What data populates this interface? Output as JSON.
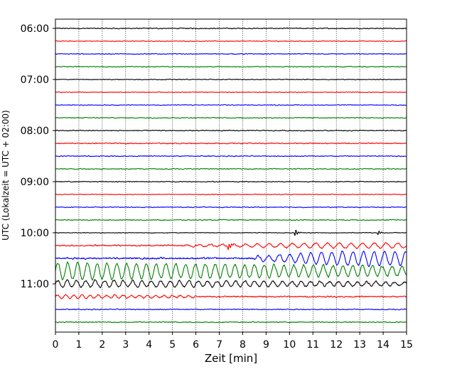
{
  "chart_data": {
    "type": "line",
    "title": "",
    "xlabel": "Zeit  [min]",
    "ylabel": "UTC (Lokalzeit = UTC + 02:00)",
    "xlim": [
      0,
      15
    ],
    "x_ticks": [
      "0",
      "1",
      "2",
      "3",
      "4",
      "5",
      "6",
      "7",
      "8",
      "9",
      "10",
      "11",
      "12",
      "13",
      "14",
      "15"
    ],
    "y_ticks": [
      "06:00",
      "07:00",
      "08:00",
      "09:00",
      "10:00",
      "11:00"
    ],
    "grid": "vertical-dotted",
    "colors_cycle": [
      "#000000",
      "#ff0000",
      "#0000ff",
      "#008000"
    ],
    "traces": [
      {
        "start": "06:00",
        "color": "#000000",
        "amp": 0.45,
        "events": []
      },
      {
        "start": "06:15",
        "color": "#ff0000",
        "amp": 0.35,
        "events": []
      },
      {
        "start": "06:30",
        "color": "#0000ff",
        "amp": 0.4,
        "events": []
      },
      {
        "start": "06:45",
        "color": "#008000",
        "amp": 0.4,
        "events": []
      },
      {
        "start": "07:00",
        "color": "#000000",
        "amp": 0.35,
        "events": []
      },
      {
        "start": "07:15",
        "color": "#ff0000",
        "amp": 0.35,
        "events": []
      },
      {
        "start": "07:30",
        "color": "#0000ff",
        "amp": 0.35,
        "events": []
      },
      {
        "start": "07:45",
        "color": "#008000",
        "amp": 0.4,
        "events": []
      },
      {
        "start": "08:00",
        "color": "#000000",
        "amp": 0.45,
        "events": []
      },
      {
        "start": "08:15",
        "color": "#ff0000",
        "amp": 0.5,
        "events": []
      },
      {
        "start": "08:30",
        "color": "#0000ff",
        "amp": 0.45,
        "events": []
      },
      {
        "start": "08:45",
        "color": "#008000",
        "amp": 0.45,
        "events": []
      },
      {
        "start": "09:00",
        "color": "#000000",
        "amp": 0.4,
        "events": []
      },
      {
        "start": "09:15",
        "color": "#ff0000",
        "amp": 0.35,
        "events": []
      },
      {
        "start": "09:30",
        "color": "#0000ff",
        "amp": 0.4,
        "events": []
      },
      {
        "start": "09:45",
        "color": "#008000",
        "amp": 0.45,
        "events": []
      },
      {
        "start": "10:00",
        "color": "#000000",
        "amp": 0.35,
        "events": [
          {
            "t": 10.25,
            "amp": 5
          },
          {
            "t": 13.8,
            "amp": 3
          }
        ]
      },
      {
        "start": "10:15",
        "color": "#ff0000",
        "amp": 0.6,
        "events": [
          {
            "t": 7.4,
            "amp": 5
          }
        ],
        "wave": {
          "from": 5.5,
          "to": 15,
          "amp": 3.5,
          "period": 0.5
        }
      },
      {
        "start": "10:30",
        "color": "#0000ff",
        "amp": 0.8,
        "events": [],
        "wave": {
          "from": 8.5,
          "to": 15,
          "amp": 10,
          "period": 0.45
        }
      },
      {
        "start": "10:45",
        "color": "#008000",
        "amp": 1.0,
        "events": [],
        "wave": {
          "from": 0,
          "to": 15,
          "amp": 12,
          "period": 0.42,
          "decay": true
        }
      },
      {
        "start": "11:00",
        "color": "#000000",
        "amp": 0.8,
        "events": [],
        "wave": {
          "from": 0,
          "to": 15,
          "amp": 5,
          "period": 0.4,
          "decay": true
        }
      },
      {
        "start": "11:15",
        "color": "#ff0000",
        "amp": 0.6,
        "events": [],
        "wave": {
          "from": 0,
          "to": 6,
          "amp": 2.5,
          "period": 0.35,
          "decay": true
        }
      },
      {
        "start": "11:30",
        "color": "#0000ff",
        "amp": 0.45,
        "events": []
      },
      {
        "start": "11:45",
        "color": "#008000",
        "amp": 0.45,
        "events": []
      }
    ]
  }
}
